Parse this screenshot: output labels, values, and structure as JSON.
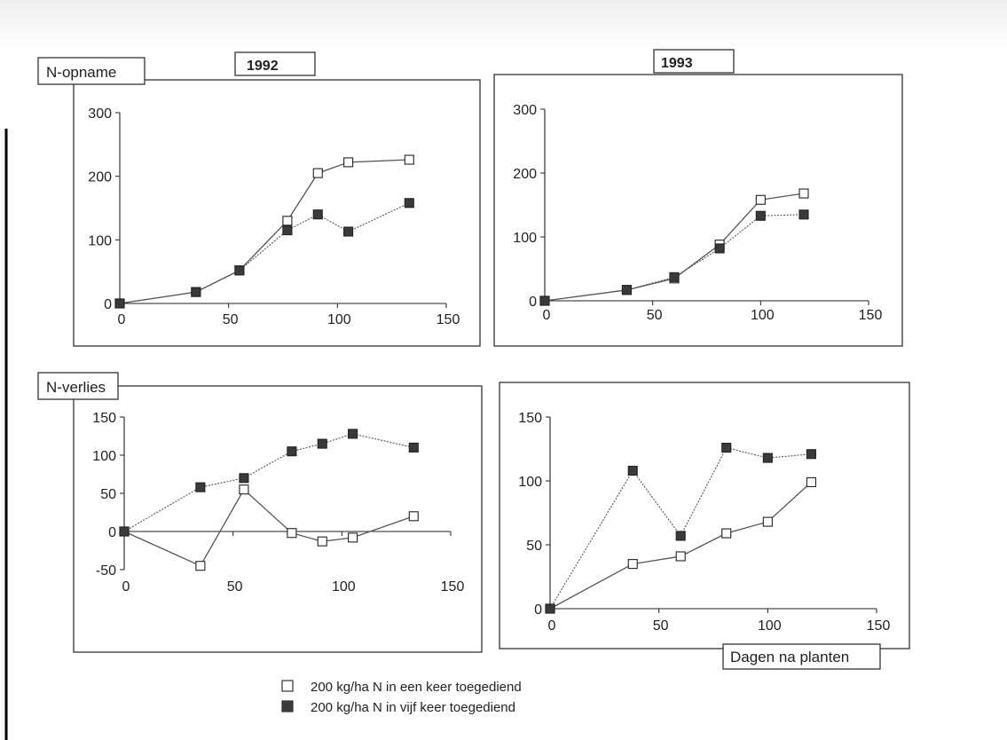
{
  "labels": {
    "uptake": "N-opname",
    "loss": "N-verlies",
    "year_1992": "1992",
    "year_1993": "1993",
    "xlabel": "Dagen na planten"
  },
  "legend": [
    {
      "marker": "open-square",
      "text": "200 kg/ha N in een keer toegediend"
    },
    {
      "marker": "filled-square",
      "text": "200 kg/ha N in vijf keer toegediend"
    }
  ],
  "colors": {
    "ink": "#222222",
    "filled": "#3a3a3a",
    "open": "#ffffff"
  },
  "chart_data": [
    {
      "type": "line",
      "title": "1992",
      "ylabel": "N-opname",
      "xlim": [
        0,
        150
      ],
      "ylim": [
        0,
        300
      ],
      "xticks": [
        0,
        50,
        100,
        150
      ],
      "yticks": [
        0,
        100,
        200,
        300
      ],
      "series": [
        {
          "marker": "open-square",
          "x": [
            0,
            35,
            55,
            77,
            91,
            105,
            133
          ],
          "y": [
            0,
            18,
            52,
            130,
            205,
            222,
            226
          ]
        },
        {
          "marker": "filled-square",
          "x": [
            0,
            35,
            55,
            77,
            91,
            105,
            133
          ],
          "y": [
            0,
            18,
            52,
            115,
            140,
            113,
            158
          ]
        }
      ]
    },
    {
      "type": "line",
      "title": "1993",
      "ylabel": "",
      "xlim": [
        0,
        150
      ],
      "ylim": [
        0,
        300
      ],
      "xticks": [
        0,
        50,
        100,
        150
      ],
      "yticks": [
        0,
        100,
        200,
        300
      ],
      "series": [
        {
          "marker": "open-square",
          "x": [
            0,
            38,
            60,
            81,
            100,
            120
          ],
          "y": [
            0,
            17,
            35,
            88,
            158,
            168
          ]
        },
        {
          "marker": "filled-square",
          "x": [
            0,
            38,
            60,
            81,
            100,
            120
          ],
          "y": [
            0,
            17,
            37,
            82,
            133,
            135
          ]
        }
      ]
    },
    {
      "type": "line",
      "title": "",
      "ylabel": "N-verlies",
      "xlim": [
        0,
        150
      ],
      "ylim": [
        -50,
        150
      ],
      "xticks": [
        0,
        50,
        100,
        150
      ],
      "yticks": [
        -50,
        0,
        50,
        100,
        150
      ],
      "series": [
        {
          "marker": "open-square",
          "x": [
            0,
            35,
            55,
            77,
            91,
            105,
            133
          ],
          "y": [
            0,
            -45,
            55,
            -2,
            -13,
            -8,
            20
          ]
        },
        {
          "marker": "filled-square",
          "x": [
            0,
            35,
            55,
            77,
            91,
            105,
            133
          ],
          "y": [
            0,
            58,
            70,
            105,
            115,
            128,
            110
          ]
        }
      ]
    },
    {
      "type": "line",
      "title": "",
      "ylabel": "",
      "xlabel": "Dagen na planten",
      "xlim": [
        0,
        150
      ],
      "ylim": [
        0,
        150
      ],
      "xticks": [
        0,
        50,
        100,
        150
      ],
      "yticks": [
        0,
        50,
        100,
        150
      ],
      "series": [
        {
          "marker": "open-square",
          "x": [
            0,
            38,
            60,
            81,
            100,
            120
          ],
          "y": [
            0,
            35,
            41,
            59,
            68,
            99
          ]
        },
        {
          "marker": "filled-square",
          "x": [
            0,
            38,
            60,
            81,
            100,
            120
          ],
          "y": [
            0,
            108,
            57,
            126,
            118,
            121
          ]
        }
      ]
    }
  ]
}
